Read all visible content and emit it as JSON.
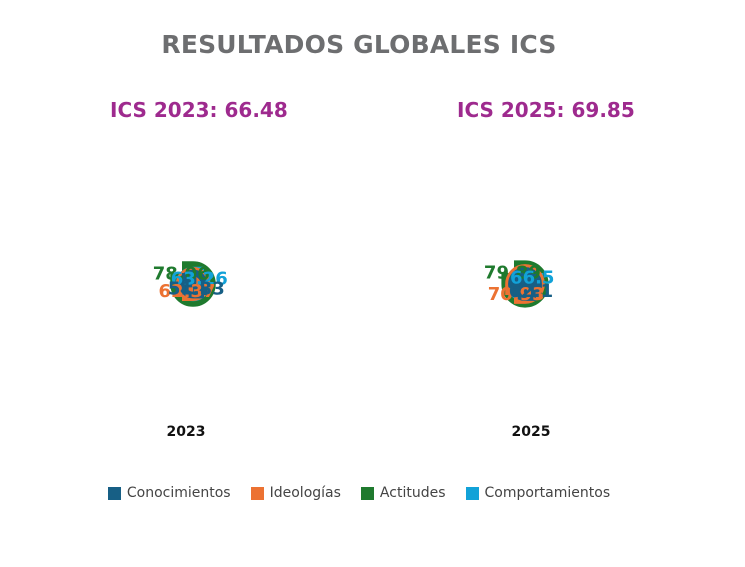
{
  "title": "RESULTADOS GLOBALES ICS",
  "colors": {
    "conocimientos": "#175f85",
    "ideologias": "#ec7232",
    "actitudes": "#1f7a2e",
    "comportamientos": "#12a2d8",
    "title": "#6d6e70",
    "panel_title": "#9e2a8e"
  },
  "chart_data": [
    {
      "type": "petal",
      "title": "ICS 2023: 66.48",
      "xlabel": "2023",
      "values": {
        "actitudes": 78.06,
        "comportamientos": 63.26,
        "ideologias": 62.37,
        "conocimientos": 51.33
      },
      "labels": {
        "actitudes": "78.06",
        "comportamientos": "63.26",
        "ideologias": "62.37",
        "conocimientos": "51.33"
      }
    },
    {
      "type": "petal",
      "title": "ICS 2025: 69.85",
      "xlabel": "2025",
      "values": {
        "actitudes": 79.89,
        "comportamientos": 66.5,
        "ideologias": 70.93,
        "conocimientos": 62.1
      },
      "labels": {
        "actitudes": "79.89",
        "comportamientos": "66.5",
        "ideologias": "70.93",
        "conocimientos": "62.1"
      }
    }
  ],
  "legend": [
    {
      "key": "conocimientos",
      "label": "Conocimientos"
    },
    {
      "key": "ideologias",
      "label": "Ideologías"
    },
    {
      "key": "actitudes",
      "label": "Actitudes"
    },
    {
      "key": "comportamientos",
      "label": "Comportamientos"
    }
  ]
}
